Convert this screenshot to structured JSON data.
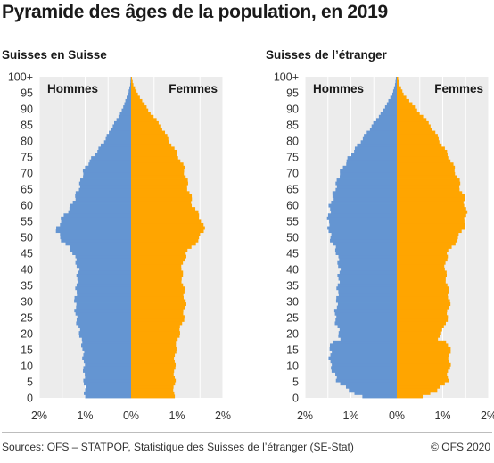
{
  "title": "Pyramide des âges de la population, en 2019",
  "source": "Sources: OFS – STATPOP, Statistique des Suisses de l’étranger (SE-Stat)",
  "copyright": "© OFS 2020",
  "colors": {
    "men": "#6495d2",
    "women": "#ffa500",
    "panel_bg": "#ececec",
    "grid": "#ffffff"
  },
  "chart_data": [
    {
      "type": "bar",
      "orientation": "horizontal",
      "subtitle": "Suisses en Suisse",
      "left_label": "Hommes",
      "right_label": "Femmes",
      "y_ticks": [
        "0",
        "5",
        "10",
        "15",
        "20",
        "25",
        "30",
        "35",
        "40",
        "45",
        "50",
        "55",
        "60",
        "65",
        "70",
        "75",
        "80",
        "85",
        "90",
        "95",
        "100+"
      ],
      "x_ticks": [
        "2%",
        "1%",
        "0%",
        "1%",
        "2%"
      ],
      "xlim": [
        -2,
        2
      ],
      "ylim": [
        0,
        100
      ],
      "ages": [
        0,
        5,
        10,
        15,
        20,
        25,
        30,
        35,
        40,
        45,
        50,
        52,
        55,
        60,
        65,
        70,
        72,
        75,
        80,
        85,
        90,
        95,
        98,
        100
      ],
      "series": [
        {
          "name": "Hommes",
          "values": [
            1.0,
            1.02,
            1.03,
            1.05,
            1.12,
            1.2,
            1.22,
            1.18,
            1.15,
            1.25,
            1.55,
            1.62,
            1.55,
            1.3,
            1.15,
            1.05,
            1.0,
            0.85,
            0.6,
            0.4,
            0.2,
            0.07,
            0.02,
            0.01
          ]
        },
        {
          "name": "Femmes",
          "values": [
            0.93,
            0.95,
            0.95,
            0.97,
            1.05,
            1.15,
            1.18,
            1.13,
            1.1,
            1.2,
            1.5,
            1.58,
            1.55,
            1.35,
            1.25,
            1.18,
            1.15,
            1.05,
            0.85,
            0.65,
            0.38,
            0.15,
            0.05,
            0.02
          ]
        }
      ]
    },
    {
      "type": "bar",
      "orientation": "horizontal",
      "subtitle": "Suisses de l’étranger",
      "left_label": "Hommes",
      "right_label": "Femmes",
      "y_ticks": [
        "0",
        "5",
        "10",
        "15",
        "20",
        "25",
        "30",
        "35",
        "40",
        "45",
        "50",
        "55",
        "60",
        "65",
        "70",
        "75",
        "80",
        "85",
        "90",
        "95",
        "100+"
      ],
      "x_ticks": [
        "2%",
        "1%",
        "0%",
        "1%",
        "2%"
      ],
      "xlim": [
        -2,
        2
      ],
      "ylim": [
        0,
        100
      ],
      "ages": [
        0,
        2,
        5,
        10,
        15,
        17,
        18,
        20,
        22,
        25,
        30,
        35,
        40,
        45,
        50,
        55,
        60,
        65,
        70,
        75,
        80,
        85,
        90,
        95,
        98,
        100
      ],
      "series": [
        {
          "name": "Hommes",
          "values": [
            0.75,
            1.05,
            1.3,
            1.45,
            1.45,
            1.4,
            1.25,
            1.25,
            1.3,
            1.35,
            1.3,
            1.28,
            1.25,
            1.3,
            1.45,
            1.5,
            1.45,
            1.35,
            1.25,
            1.05,
            0.8,
            0.55,
            0.3,
            0.1,
            0.04,
            0.02
          ]
        },
        {
          "name": "Femmes",
          "values": [
            0.55,
            0.9,
            1.1,
            1.15,
            1.15,
            1.1,
            0.9,
            0.95,
            1.05,
            1.1,
            1.15,
            1.1,
            1.05,
            1.1,
            1.35,
            1.5,
            1.5,
            1.4,
            1.3,
            1.15,
            0.95,
            0.75,
            0.45,
            0.15,
            0.06,
            0.03
          ]
        }
      ]
    }
  ]
}
